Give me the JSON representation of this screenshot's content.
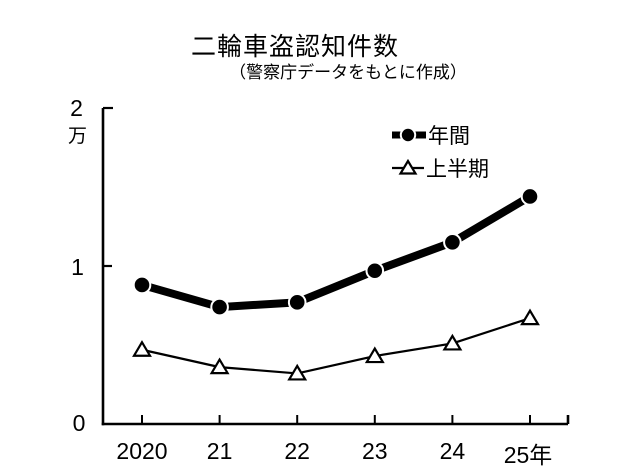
{
  "chart_data": {
    "type": "line",
    "title": "二輪車盗認知件数",
    "subtitle": "（警察庁データをもとに作成）",
    "unit": "万件",
    "categories": [
      "2020",
      "21",
      "22",
      "23",
      "24",
      "25年"
    ],
    "series": [
      {
        "name": "年間",
        "marker": "filled-circle",
        "line": "thick",
        "color": "#000000",
        "values": [
          0.88,
          0.74,
          0.77,
          0.97,
          1.15,
          1.44
        ]
      },
      {
        "name": "上半期",
        "marker": "open-triangle",
        "line": "thin",
        "color": "#000000",
        "values": [
          0.47,
          0.36,
          0.32,
          0.43,
          0.51,
          0.67
        ]
      }
    ],
    "y_axis": {
      "min": 0,
      "max": 2,
      "tick_values": [
        0,
        1,
        2
      ],
      "tick_labels": [
        "0",
        "1",
        "2"
      ],
      "unit_label": "万"
    },
    "x_axis": {
      "tick_marks": "inside-up"
    },
    "legend_position": "top-right",
    "grid": false,
    "colors": {
      "ink": "#000000",
      "background": "#ffffff"
    }
  }
}
